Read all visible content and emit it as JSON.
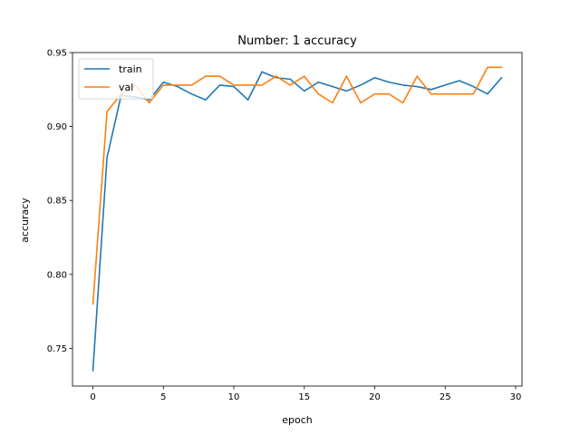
{
  "chart_data": {
    "type": "line",
    "title": "Number: 1 accuracy",
    "xlabel": "epoch",
    "ylabel": "accuracy",
    "xlim": [
      -1.45,
      30.45
    ],
    "ylim": [
      0.7245,
      0.95
    ],
    "xticks": [
      0,
      5,
      10,
      15,
      20,
      25,
      30
    ],
    "yticks": [
      0.75,
      0.8,
      0.85,
      0.9,
      0.95
    ],
    "legend_position": "top-left",
    "x": [
      0,
      1,
      2,
      3,
      4,
      5,
      6,
      7,
      8,
      9,
      10,
      11,
      12,
      13,
      14,
      15,
      16,
      17,
      18,
      19,
      20,
      21,
      22,
      23,
      24,
      25,
      26,
      27,
      28,
      29
    ],
    "series": [
      {
        "name": "train",
        "color": "#1f77b4",
        "values": [
          0.735,
          0.879,
          0.921,
          0.92,
          0.918,
          0.93,
          0.927,
          0.922,
          0.918,
          0.928,
          0.927,
          0.918,
          0.937,
          0.933,
          0.932,
          0.924,
          0.93,
          0.927,
          0.924,
          0.928,
          0.933,
          0.93,
          0.928,
          0.927,
          0.925,
          0.928,
          0.931,
          0.927,
          0.922,
          0.933
        ]
      },
      {
        "name": "val",
        "color": "#ff7f0e",
        "values": [
          0.78,
          0.91,
          0.922,
          0.928,
          0.916,
          0.928,
          0.928,
          0.928,
          0.934,
          0.934,
          0.928,
          0.928,
          0.928,
          0.934,
          0.928,
          0.934,
          0.922,
          0.916,
          0.934,
          0.916,
          0.922,
          0.922,
          0.916,
          0.934,
          0.922,
          0.922,
          0.922,
          0.922,
          0.94,
          0.94
        ]
      }
    ]
  }
}
